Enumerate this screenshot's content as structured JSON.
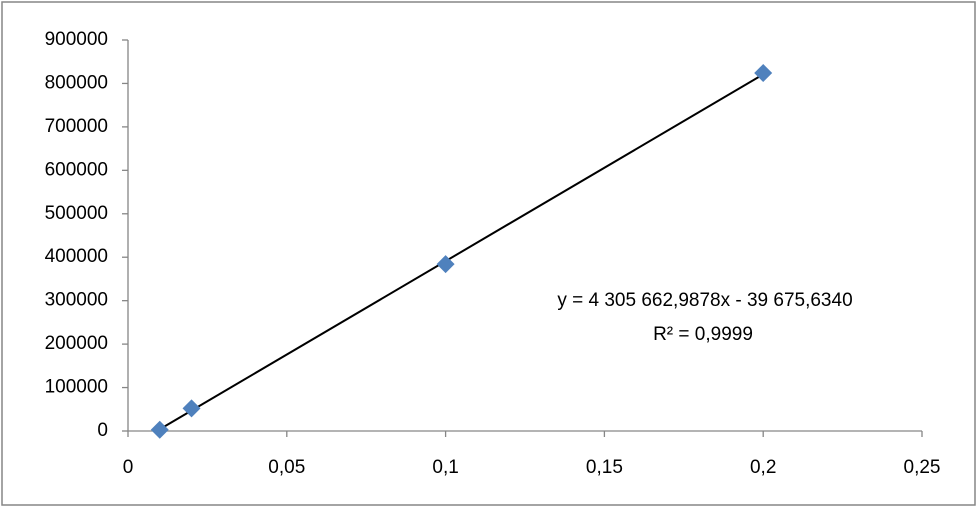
{
  "chart_data": {
    "type": "scatter",
    "x": [
      0.01,
      0.02,
      0.1,
      0.2
    ],
    "values": [
      3000,
      52000,
      384000,
      824000
    ],
    "color": "#4f81bd",
    "trendline": "linear",
    "trendline_color": "#000000",
    "annotations": [
      "y = 4 305 662,9878x - 39 675,6340",
      "R² = 0,9999"
    ],
    "xlim": [
      0,
      0.25
    ],
    "xticks": [
      0,
      {
        "value": 0.05,
        "label": "0,05"
      },
      {
        "value": 0.1,
        "label": "0,1"
      },
      {
        "value": 0.15,
        "label": "0,15"
      },
      {
        "value": 0.2,
        "label": "0,2"
      },
      {
        "value": 0.25,
        "label": "0,25"
      }
    ],
    "ylim": [
      0,
      900000
    ],
    "yticks": [
      0,
      100000,
      200000,
      300000,
      400000,
      500000,
      600000,
      700000,
      800000,
      900000
    ],
    "grid": false
  }
}
